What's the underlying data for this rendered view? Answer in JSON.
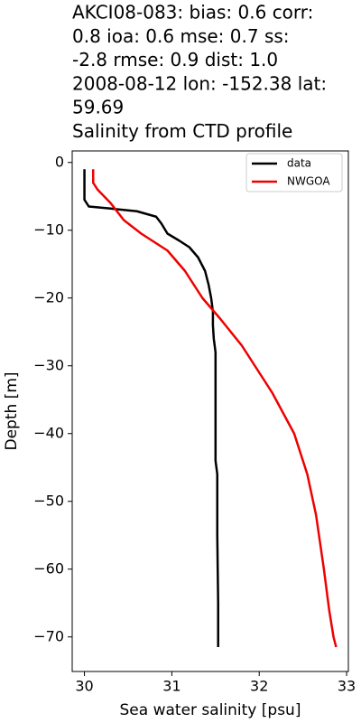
{
  "chart_data": {
    "type": "line",
    "title": [
      "AKCI08-083: bias: 0.6  corr:",
      "0.8  ioa: 0.6  mse: 0.7  ss:",
      "-2.8  rmse: 0.9  dist: 1.0",
      "2008-08-12 lon: -152.38 lat:",
      "59.69",
      "Salinity from CTD profile"
    ],
    "x_label": "Sea water salinity [psu]",
    "y_label": "Depth [m]",
    "xlim": [
      29.86,
      33.02
    ],
    "ylim": [
      -75.1,
      1.7
    ],
    "xticks": [
      30,
      31,
      32,
      33
    ],
    "yticks": [
      0,
      {
        "value": -10,
        "label": "−10"
      },
      {
        "value": -20,
        "label": "−20"
      },
      {
        "value": -30,
        "label": "−30"
      },
      {
        "value": -40,
        "label": "−40"
      },
      {
        "value": -50,
        "label": "−50"
      },
      {
        "value": -60,
        "label": "−60"
      },
      {
        "value": -70,
        "label": "−70"
      }
    ],
    "legend": "upper right",
    "series": [
      {
        "name": "data",
        "color": "#000000",
        "x": [
          30.0,
          30.0,
          30.05,
          30.3,
          30.6,
          30.82,
          30.88,
          30.95,
          31.08,
          31.2,
          31.3,
          31.38,
          31.42,
          31.45,
          31.47,
          31.47,
          31.48,
          31.5,
          31.5,
          31.5,
          31.5,
          31.52,
          31.52,
          31.53,
          31.53
        ],
        "values": [
          -1,
          -5.5,
          -6.5,
          -6.8,
          -7.2,
          -8,
          -9,
          -10.5,
          -11.5,
          -12.5,
          -14,
          -16,
          -18,
          -20,
          -22,
          -24,
          -26,
          -28,
          -32,
          -40,
          -44,
          -46,
          -55,
          -65,
          -71.5
        ]
      },
      {
        "name": "NWGOA",
        "color": "#ee0000",
        "x": [
          30.1,
          30.1,
          30.15,
          30.3,
          30.45,
          30.65,
          30.95,
          31.15,
          31.35,
          31.55,
          31.8,
          31.95,
          32.15,
          32.4,
          32.55,
          32.65,
          32.74,
          32.8,
          32.85,
          32.88
        ],
        "values": [
          -1,
          -3,
          -4,
          -6,
          -8.5,
          -10.5,
          -13,
          -16,
          -20,
          -23,
          -27,
          -30,
          -34,
          -40,
          -46,
          -52,
          -60,
          -66,
          -70,
          -71.5
        ]
      }
    ]
  }
}
